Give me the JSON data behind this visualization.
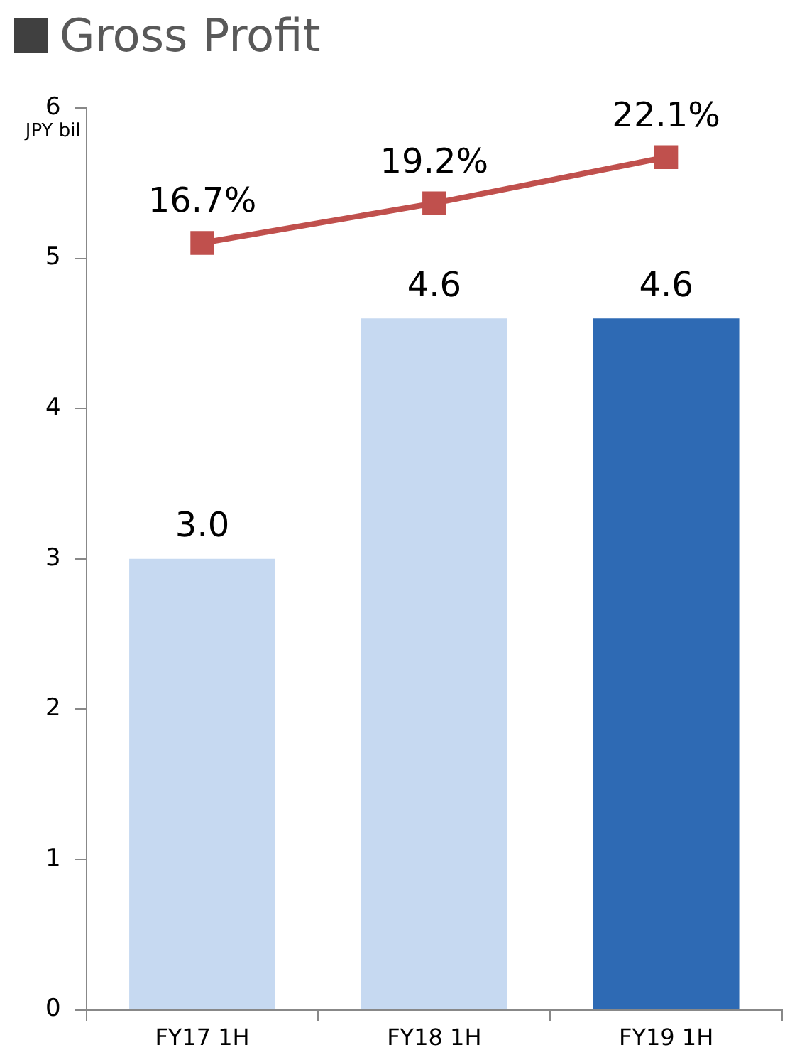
{
  "chart_data": {
    "type": "bar",
    "title": "Gross Profit",
    "ylabel": "JPY bil",
    "categories": [
      "FY17 1H",
      "FY18 1H",
      "FY19 1H"
    ],
    "series": [
      {
        "values": [
          3.0,
          4.6,
          4.6
        ],
        "value_labels": [
          "3.0",
          "4.6",
          "4.6"
        ],
        "colors": [
          "#c6d9f1",
          "#c6d9f1",
          "#2e6ab4"
        ]
      },
      {
        "type": "line",
        "axis": "y2",
        "values": [
          16.7,
          19.2,
          22.1
        ],
        "value_labels": [
          "16.7%",
          "19.2%",
          "22.1%"
        ],
        "color": "#c0504d",
        "marker": "square"
      }
    ],
    "ylim": [
      0,
      6
    ],
    "yticks": [
      0,
      1,
      2,
      3,
      4,
      5,
      6
    ],
    "y2lim": [
      -31.6,
      25.2
    ],
    "grid": false,
    "legend": false
  }
}
